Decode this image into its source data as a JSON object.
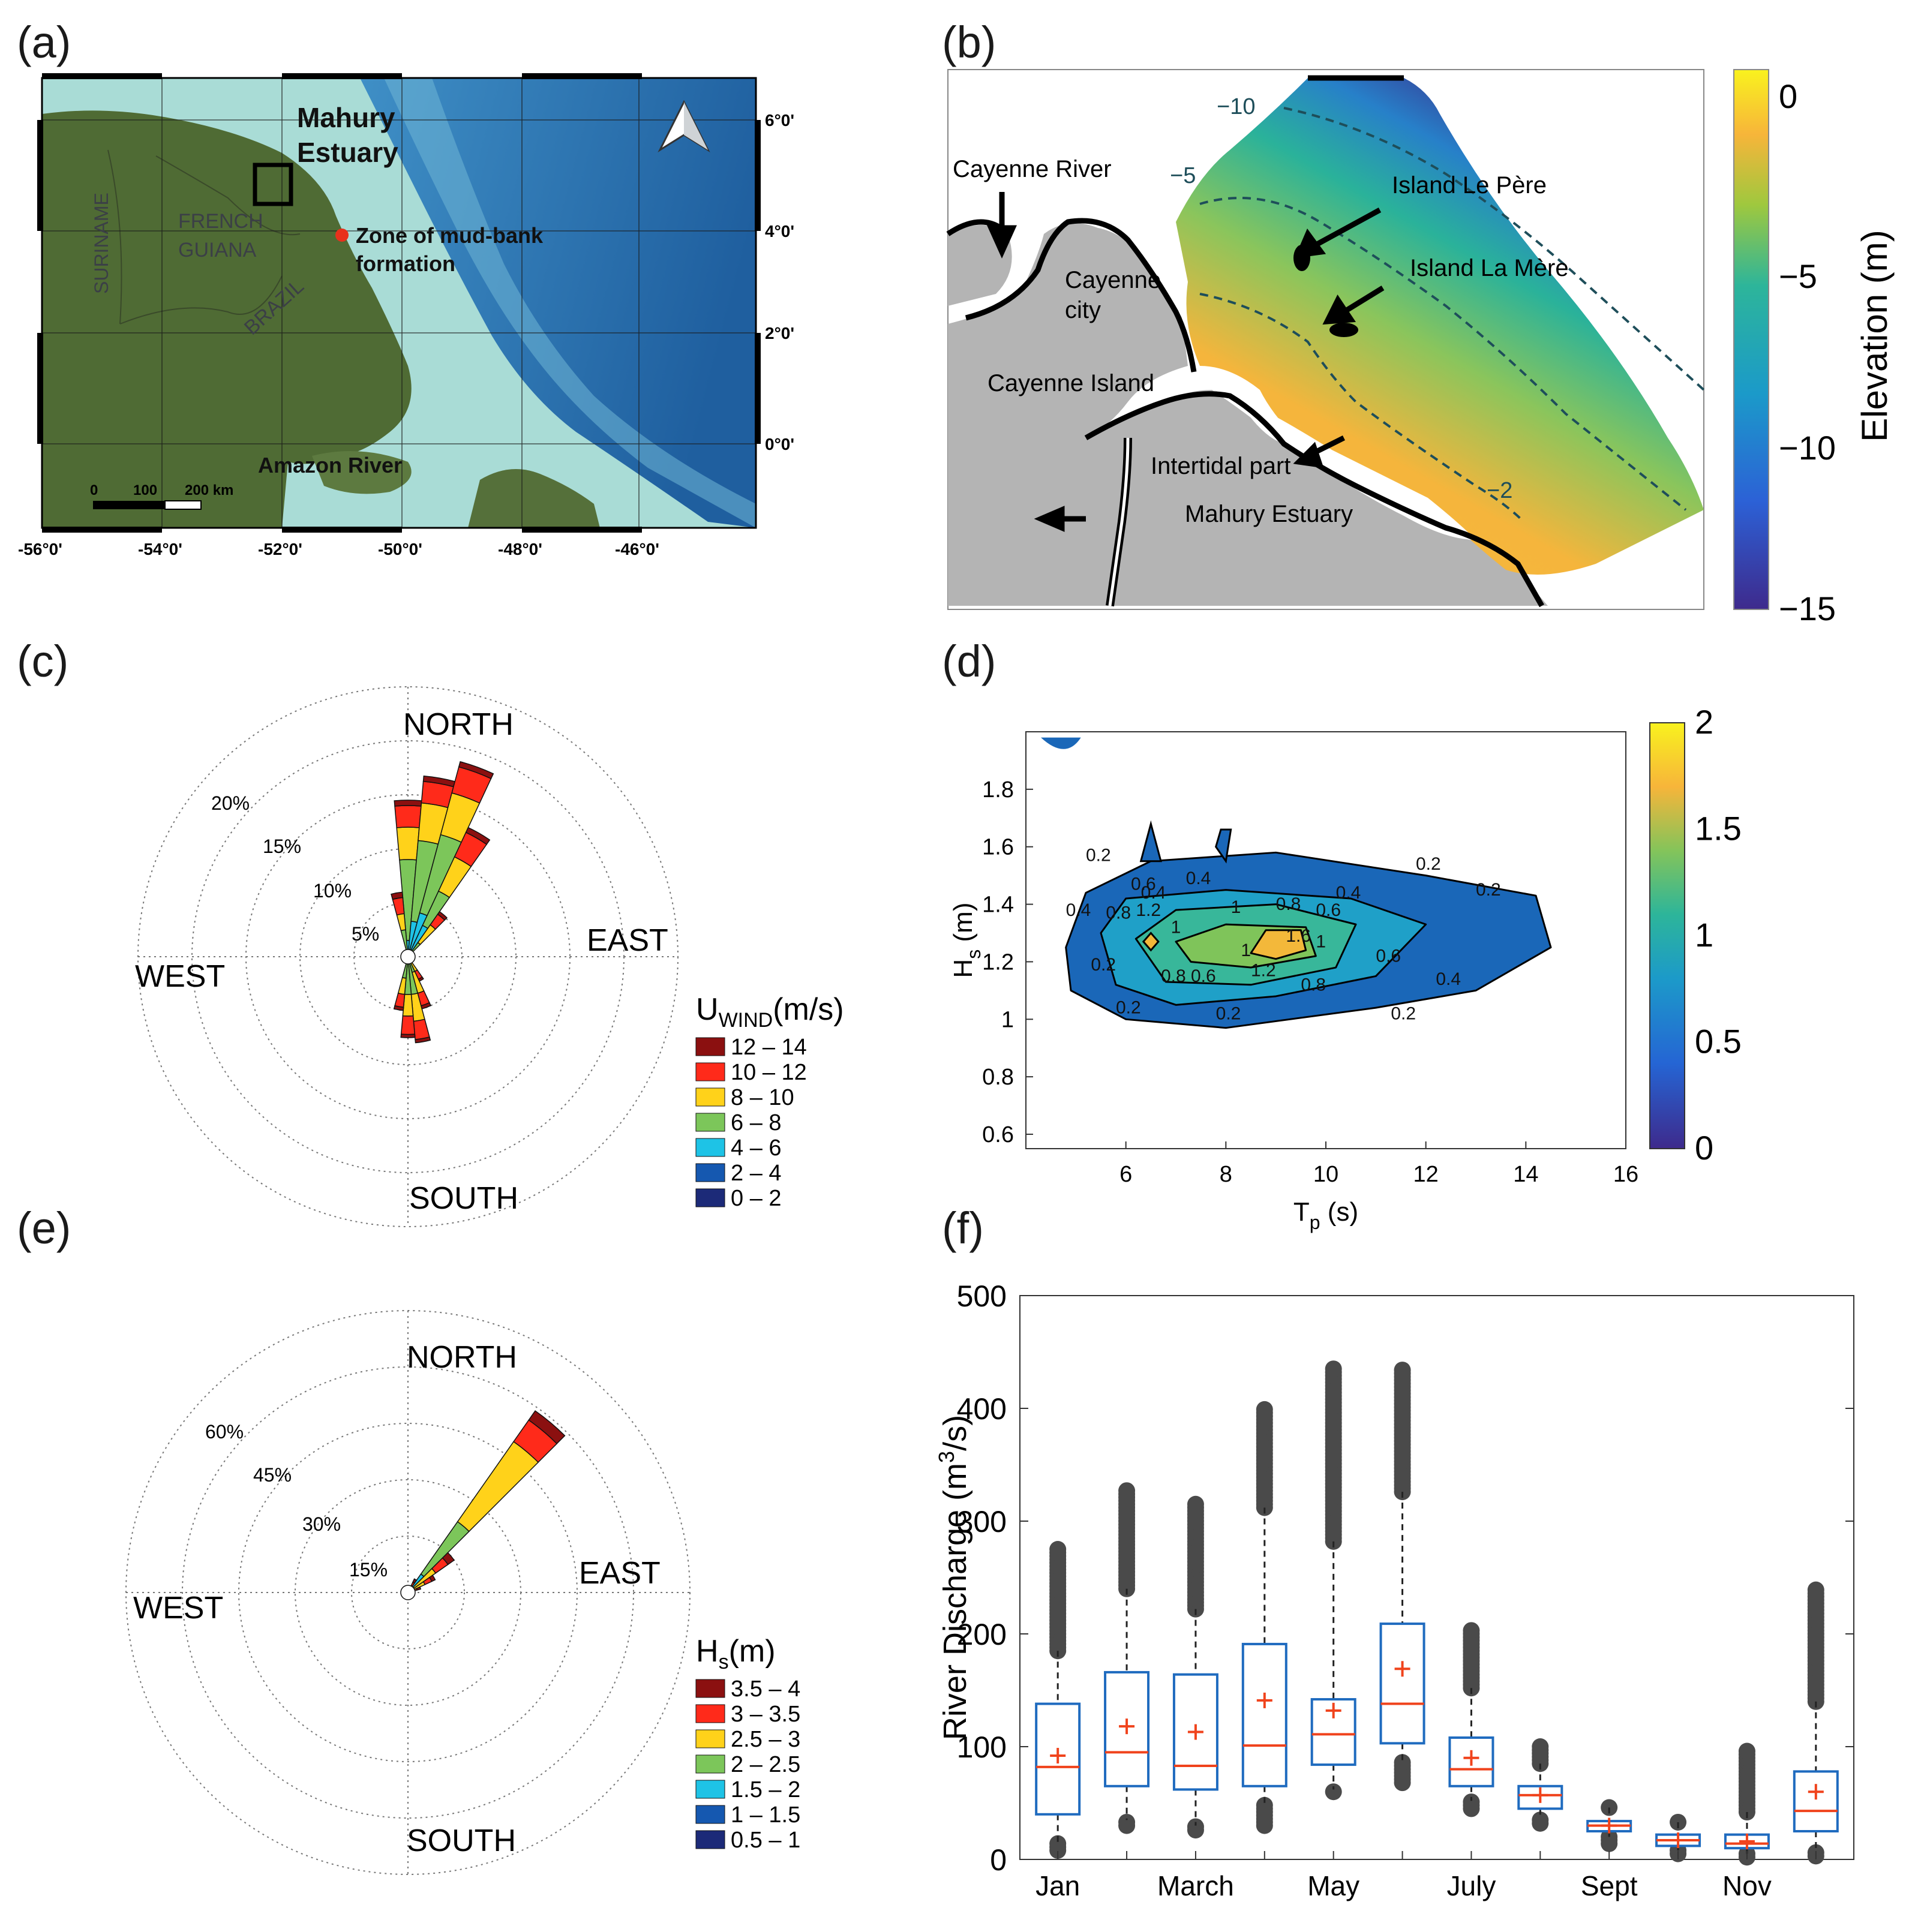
{
  "panels": {
    "a": "(a)",
    "b": "(b)",
    "c": "(c)",
    "d": "(d)",
    "e": "(e)",
    "f": "(f)"
  },
  "map_a": {
    "labels": {
      "mahury_estuary": "Mahury\nEstuary",
      "zone_mud": "Zone of mud-bank\nformation",
      "suriname": "SURINAME",
      "french_guiana": "FRENCH\nGUIANA",
      "brazil": "BRAZIL",
      "amazon": "Amazon River"
    },
    "lon_ticks": [
      "-56°0'",
      "-54°0'",
      "-52°0'",
      "-50°0'",
      "-48°0'",
      "-46°0'"
    ],
    "lat_ticks": [
      "6°0'",
      "4°0'",
      "2°0'",
      "0°0'"
    ],
    "scalebar": [
      "0",
      "100",
      "200 km"
    ],
    "colors": {
      "land": "#4f6b34",
      "shelf": "#a9dcd6",
      "deep": "#2e79b5"
    }
  },
  "map_b": {
    "labels": {
      "cayenne_river": "Cayenne River",
      "cayenne_city": "Cayenne\ncity",
      "cayenne_island": "Cayenne Island",
      "island_pere": "Island Le Père",
      "island_mere": "Island La Mère",
      "intertidal": "Intertidal part",
      "mahury": "Mahury Estuary"
    },
    "contours": [
      "−10",
      "−5",
      "−2"
    ],
    "colorbar": {
      "label": "Elevation (m)",
      "ticks": [
        "0",
        "−5",
        "−10",
        "−15"
      ],
      "range": [
        -15,
        1
      ]
    }
  },
  "chart_data": [
    {
      "id": "c",
      "type": "wind-rose",
      "direction_labels": [
        "NORTH",
        "EAST",
        "SOUTH",
        "WEST"
      ],
      "radial_ticks": [
        "5%",
        "10%",
        "15%",
        "20%"
      ],
      "radial_values": [
        5,
        10,
        15,
        20
      ],
      "rmax": 25,
      "legend_title": "U",
      "legend_title_sub": "WIND",
      "legend_unit": "(m/s)",
      "bins": [
        "12 – 14",
        "10 – 12",
        "8 – 10",
        "6 – 8",
        "4 – 6",
        "2 – 4",
        "0 – 2"
      ],
      "bin_colors": [
        "#8b1010",
        "#ff2a1a",
        "#ffd21a",
        "#7cc65a",
        "#1ec3e6",
        "#1558b0",
        "#1c2a78"
      ],
      "sectors": [
        {
          "dir": 0,
          "cum": [
            0.5,
            2.5,
            5.5,
            13,
            14,
            14.5,
            14.5
          ]
        },
        {
          "dir": 10,
          "cum": [
            0.5,
            2.5,
            6,
            13.5,
            16.5,
            16.8,
            16.8
          ]
        },
        {
          "dir": 20,
          "cum": [
            0.5,
            3,
            7,
            14.5,
            18,
            18.7,
            18.7
          ]
        },
        {
          "dir": 30,
          "cum": [
            0.5,
            3,
            6.5,
            10,
            12.5,
            13.2,
            13.2
          ]
        },
        {
          "dir": 40,
          "cum": [
            0.3,
            1.5,
            3.5,
            4.5,
            5,
            5.1,
            5.1
          ]
        },
        {
          "dir": 350,
          "cum": [
            0.5,
            2,
            3.5,
            6,
            6,
            6,
            6
          ]
        },
        {
          "dir": 170,
          "cum": [
            0.3,
            2,
            4.5,
            8,
            8,
            8,
            8
          ]
        },
        {
          "dir": 180,
          "cum": [
            0.3,
            2,
            4,
            7.5,
            7.5,
            7.5,
            7.5
          ]
        },
        {
          "dir": 190,
          "cum": [
            0.3,
            1.5,
            3,
            5,
            5,
            5,
            5
          ]
        },
        {
          "dir": 160,
          "cum": [
            0.3,
            1.5,
            3.5,
            5,
            5,
            5,
            5
          ]
        },
        {
          "dir": 150,
          "cum": [
            0.2,
            1,
            2,
            2.5,
            2.5,
            2.5,
            2.5
          ]
        }
      ]
    },
    {
      "id": "d",
      "type": "contour",
      "xlabel": "T",
      "xlabel_sub": "p",
      "xlabel_unit": "(s)",
      "ylabel": "H",
      "ylabel_sub": "s",
      "ylabel_unit": "(m)",
      "xlim": [
        4,
        16
      ],
      "ylim": [
        0.55,
        2.0
      ],
      "xticks": [
        6,
        8,
        10,
        12,
        14,
        16
      ],
      "yticks": [
        0.6,
        0.8,
        1,
        1.2,
        1.4,
        1.6,
        1.8
      ],
      "colorbar_ticks": [
        "0",
        "0.5",
        "1",
        "1.5",
        "2"
      ],
      "colorbar_range": [
        0,
        2
      ],
      "contour_labels": [
        "0.2",
        "0.2",
        "0.2",
        "0.2",
        "0.2",
        "0.2",
        "0.2",
        "0.4",
        "0.4",
        "0.4",
        "0.4",
        "0.4",
        "0.6",
        "0.6",
        "0.6",
        "0.6",
        "0.8",
        "0.8",
        "0.8",
        "0.8",
        "1",
        "1",
        "1",
        "1",
        "1.2",
        "1.2",
        "1.6"
      ]
    },
    {
      "id": "e",
      "type": "wave-rose",
      "direction_labels": [
        "NORTH",
        "EAST",
        "SOUTH",
        "WEST"
      ],
      "radial_ticks": [
        "15%",
        "30%",
        "45%",
        "60%"
      ],
      "radial_values": [
        15,
        30,
        45,
        60
      ],
      "rmax": 75,
      "legend_title": "H",
      "legend_title_sub": "s",
      "legend_unit": "(m)",
      "bins": [
        "3.5 – 4",
        "3 – 3.5",
        "2.5 – 3",
        "2 – 2.5",
        "1.5 – 2",
        "1 – 1.5",
        "0.5 – 1"
      ],
      "bin_colors": [
        "#8b1010",
        "#ff2a1a",
        "#ffd21a",
        "#7cc65a",
        "#1ec3e6",
        "#1558b0",
        "#1c2a78"
      ],
      "sectors": [
        {
          "dir": 40,
          "cum": [
            3,
            10,
            36,
            53,
            58,
            59,
            59
          ]
        },
        {
          "dir": 50,
          "cum": [
            2,
            6,
            13,
            15,
            15,
            15,
            15
          ]
        },
        {
          "dir": 60,
          "cum": [
            1,
            3,
            7,
            8,
            8,
            8,
            8
          ]
        },
        {
          "dir": 70,
          "cum": [
            1,
            2,
            3,
            3.5,
            3.5,
            3.5,
            3.5
          ]
        },
        {
          "dir": 30,
          "cum": [
            1,
            2,
            4,
            4,
            4,
            4,
            4
          ]
        }
      ]
    },
    {
      "id": "f",
      "type": "box",
      "ylabel": "River Discharge (m",
      "ylabel_sup": "3",
      "ylabel_end": "/s)",
      "ylim": [
        0,
        500
      ],
      "yticks": [
        0,
        100,
        200,
        300,
        400,
        500
      ],
      "xtick_labels": [
        "Jan",
        "",
        "March",
        "",
        "May",
        "",
        "July",
        "",
        "Sept",
        "",
        "Nov",
        ""
      ],
      "boxes": [
        {
          "q1": 40,
          "median": 82,
          "q3": 138,
          "mean": 92,
          "wlo": 14,
          "whi": 185,
          "out_lo": 8,
          "out_hi": 275
        },
        {
          "q1": 65,
          "median": 95,
          "q3": 166,
          "mean": 118,
          "wlo": 35,
          "whi": 240,
          "out_lo": 30,
          "out_hi": 328
        },
        {
          "q1": 62,
          "median": 83,
          "q3": 164,
          "mean": 113,
          "wlo": 30,
          "whi": 222,
          "out_lo": 26,
          "out_hi": 316
        },
        {
          "q1": 65,
          "median": 101,
          "q3": 191,
          "mean": 141,
          "wlo": 50,
          "whi": 312,
          "out_lo": 30,
          "out_hi": 400
        },
        {
          "q1": 84,
          "median": 111,
          "q3": 142,
          "mean": 132,
          "wlo": 62,
          "whi": 282,
          "out_lo": 60,
          "out_hi": 435
        },
        {
          "q1": 103,
          "median": 138,
          "q3": 209,
          "mean": 169,
          "wlo": 86,
          "whi": 326,
          "out_lo": 68,
          "out_hi": 435
        },
        {
          "q1": 65,
          "median": 80,
          "q3": 108,
          "mean": 90,
          "wlo": 52,
          "whi": 152,
          "out_lo": 45,
          "out_hi": 205
        },
        {
          "q1": 45,
          "median": 57,
          "q3": 65,
          "mean": 57,
          "wlo": 36,
          "whi": 85,
          "out_lo": 32,
          "out_hi": 102
        },
        {
          "q1": 25,
          "median": 30,
          "q3": 34,
          "mean": 30,
          "wlo": 20,
          "whi": 46,
          "out_lo": 14,
          "out_hi": 48
        },
        {
          "q1": 12,
          "median": 17,
          "q3": 22,
          "mean": 17,
          "wlo": 8,
          "whi": 33,
          "out_lo": 5,
          "out_hi": 35
        },
        {
          "q1": 10,
          "median": 14,
          "q3": 22,
          "mean": 16,
          "wlo": 5,
          "whi": 42,
          "out_lo": 2,
          "out_hi": 98
        },
        {
          "q1": 25,
          "median": 43,
          "q3": 78,
          "mean": 60,
          "wlo": 8,
          "whi": 140,
          "out_lo": 3,
          "out_hi": 240
        }
      ]
    }
  ]
}
